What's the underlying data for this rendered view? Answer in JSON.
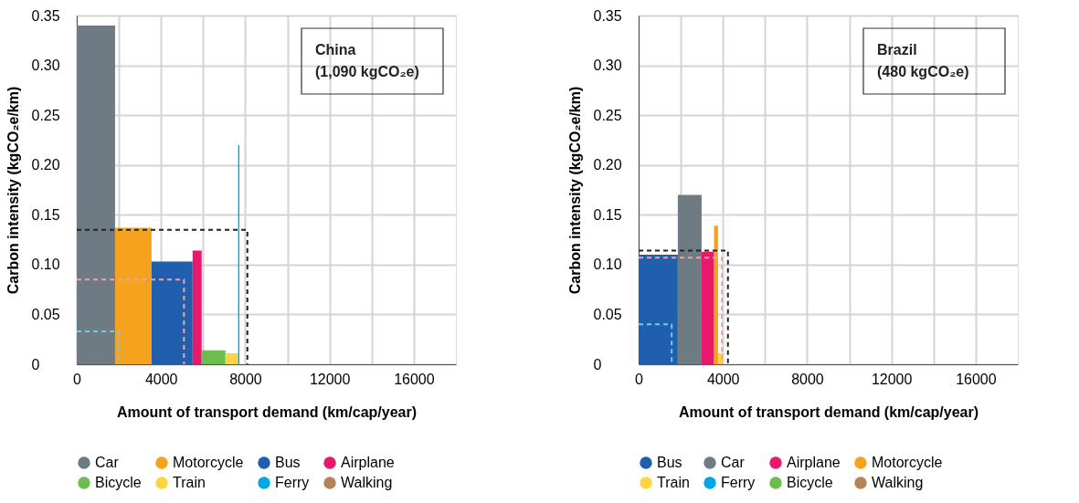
{
  "chart_data": [
    {
      "type": "area",
      "annotations": [
        "China",
        "(1,090 kgCO₂e)"
      ],
      "xlabel": "Amount of transport demand (km/cap/year)",
      "ylabel": "Carbon intensity (kgCO₂e/km)",
      "xlim": [
        0,
        18000
      ],
      "ylim": [
        0,
        0.35
      ],
      "xticks": [
        0,
        {
          "value": 2000,
          "label": null
        },
        4000,
        {
          "value": 6000,
          "label": null
        },
        8000,
        {
          "value": 10000,
          "label": null
        },
        12000,
        {
          "value": 14000,
          "label": null
        },
        16000
      ],
      "yticks": [
        0,
        0.05,
        {
          "value": 0.1,
          "label": "0.10"
        },
        0.15,
        {
          "value": 0.2,
          "label": "0.20"
        },
        0.25,
        {
          "value": 0.3,
          "label": "0.30"
        },
        0.35
      ],
      "grid": true,
      "legend": "bottom left",
      "series": [
        {
          "name": "Car",
          "color": "#6e7b83",
          "x": [
            0,
            1820
          ],
          "values": [
            0.34,
            0.34
          ]
        },
        {
          "name": "Motorcycle",
          "color": "#f5a31e",
          "x": [
            1820,
            3550
          ],
          "values": [
            0.137,
            0.137
          ]
        },
        {
          "name": "Bus",
          "color": "#1f5fad",
          "x": [
            3550,
            5500
          ],
          "values": [
            0.103,
            0.103
          ]
        },
        {
          "name": "Airplane",
          "color": "#e8186a",
          "x": [
            5500,
            5930
          ],
          "values": [
            0.114,
            0.114
          ]
        },
        {
          "name": "Bicycle",
          "color": "#6bbd4f",
          "x": [
            5930,
            7060
          ],
          "values": [
            0.014,
            0.014
          ]
        },
        {
          "name": "Train",
          "color": "#fcd541",
          "x": [
            7060,
            7660
          ],
          "values": [
            0.011,
            0.011
          ]
        },
        {
          "name": "Ferry",
          "color": "#00a6e6",
          "x": [
            7660,
            7720
          ],
          "values": [
            0.22,
            0.22
          ]
        },
        {
          "name": "Walking",
          "color": "#b5835a",
          "values": [
            null,
            null
          ]
        },
        {
          "type": "line",
          "line_style": "dashed",
          "color": "#222222",
          "x": [
            0,
            8100,
            8100
          ],
          "values": [
            0.135,
            0.135,
            0
          ]
        },
        {
          "type": "line",
          "line_style": "dashed",
          "color": "#f4a0ab",
          "x": [
            0,
            5090,
            5090
          ],
          "values": [
            0.085,
            0.085,
            0
          ]
        },
        {
          "type": "line",
          "line_style": "dashed",
          "color": "#6fcdf0",
          "x": [
            0,
            1980,
            1980
          ],
          "values": [
            0.033,
            0.033,
            0
          ]
        }
      ]
    },
    {
      "type": "area",
      "annotations": [
        "Brazil",
        "(480 kgCO₂e)"
      ],
      "xlabel": "Amount of transport demand (km/cap/year)",
      "ylabel": "Carbon intensity (kgCO₂e/km)",
      "xlim": [
        0,
        18000
      ],
      "ylim": [
        0,
        0.35
      ],
      "xticks": [
        0,
        {
          "value": 2000,
          "label": null
        },
        4000,
        {
          "value": 6000,
          "label": null
        },
        8000,
        {
          "value": 10000,
          "label": null
        },
        12000,
        {
          "value": 14000,
          "label": null
        },
        16000
      ],
      "yticks": [
        0,
        0.05,
        {
          "value": 0.1,
          "label": "0.10"
        },
        0.15,
        {
          "value": 0.2,
          "label": "0.20"
        },
        0.25,
        {
          "value": 0.3,
          "label": "0.30"
        },
        0.35
      ],
      "grid": true,
      "legend": "bottom left",
      "series": [
        {
          "name": "Bus",
          "color": "#1f5fad",
          "x": [
            0,
            1860
          ],
          "values": [
            0.11,
            0.11
          ]
        },
        {
          "name": "Car",
          "color": "#6e7b83",
          "x": [
            1860,
            2990
          ],
          "values": [
            0.17,
            0.17
          ]
        },
        {
          "name": "Airplane",
          "color": "#e8186a",
          "x": [
            2990,
            3580
          ],
          "values": [
            0.113,
            0.113
          ]
        },
        {
          "name": "Motorcycle",
          "color": "#f5a31e",
          "x": [
            3580,
            3770
          ],
          "values": [
            0.139,
            0.139
          ]
        },
        {
          "name": "Train",
          "color": "#fcd541",
          "x": [
            3770,
            4000
          ],
          "values": [
            0.011,
            0.011
          ]
        },
        {
          "name": "Ferry",
          "color": "#00a6e6",
          "values": [
            null,
            null
          ]
        },
        {
          "name": "Bicycle",
          "color": "#6bbd4f",
          "values": [
            null,
            null
          ]
        },
        {
          "name": "Walking",
          "color": "#b5835a",
          "values": [
            null,
            null
          ]
        },
        {
          "type": "line",
          "line_style": "dashed",
          "color": "#222222",
          "x": [
            0,
            4240,
            4240
          ],
          "values": [
            0.114,
            0.114,
            0
          ]
        },
        {
          "type": "line",
          "line_style": "dashed",
          "color": "#f4a0ab",
          "x": [
            0,
            3950,
            3950
          ],
          "values": [
            0.107,
            0.107,
            0
          ]
        },
        {
          "type": "line",
          "line_style": "dashed",
          "color": "#6fcdf0",
          "x": [
            0,
            1570,
            1570
          ],
          "values": [
            0.04,
            0.04,
            0
          ]
        }
      ]
    }
  ]
}
